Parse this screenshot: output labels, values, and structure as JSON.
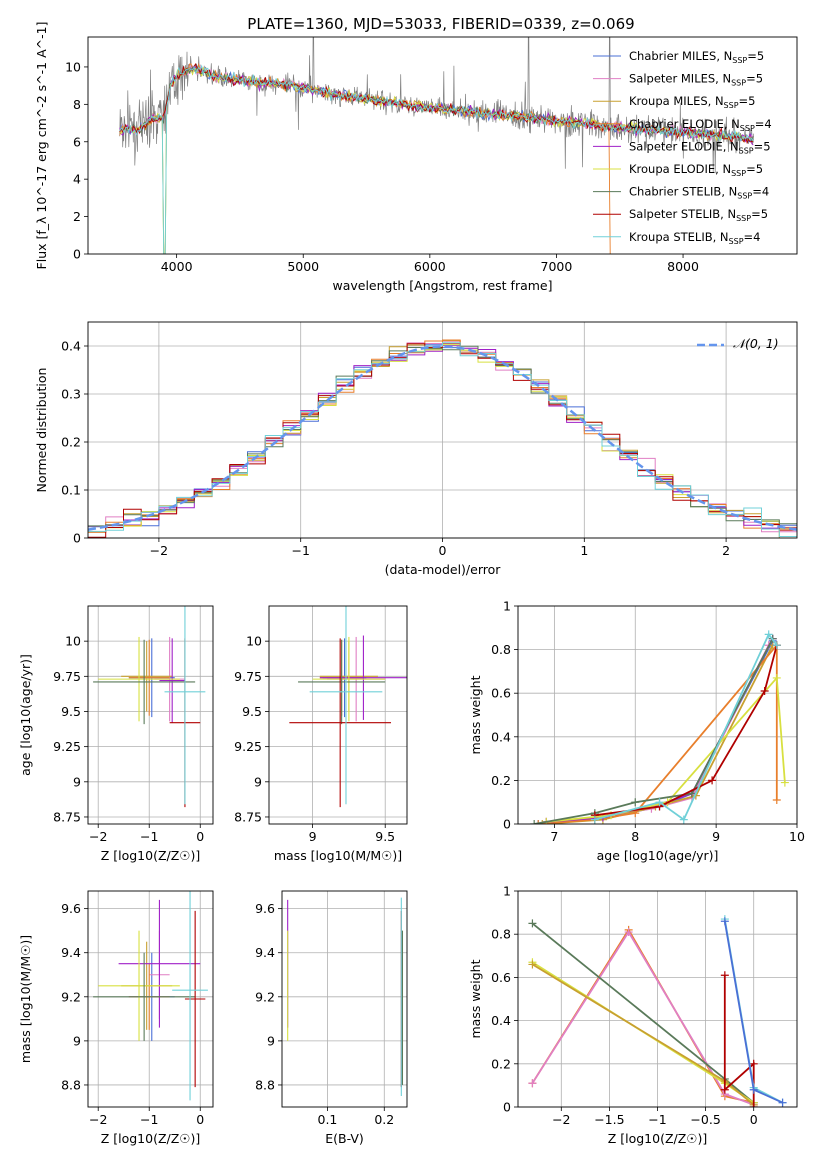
{
  "figure": {
    "title": "PLATE=1360, MJD=53033, FIBERID=0339, z=0.069"
  },
  "colors": {
    "Chabrier MILES": "#4a6fd6",
    "Salpeter MILES": "#e07fc4",
    "Kroupa MILES": "#c8a030",
    "Chabrier ELODIE": "#e87f2c",
    "Salpeter ELODIE": "#a020c8",
    "Kroupa ELODIE": "#d8e040",
    "Chabrier STELIB": "#5a7a5a",
    "Salpeter STELIB": "#b00000",
    "Kroupa STELIB": "#70d0d8",
    "data": "#808080",
    "normal": "#6495ed",
    "grid": "#b0b0b0"
  },
  "chart_data": [
    {
      "id": "spectrum",
      "type": "line",
      "xlabel": "wavelength [Angstrom, rest frame]",
      "ylabel": "Flux [f_λ 10^-17 erg cm^-2 s^-1 A^-1]",
      "xlim": [
        3300,
        8900
      ],
      "ylim": [
        0,
        11.6
      ],
      "xticks": [
        4000,
        5000,
        6000,
        7000,
        8000
      ],
      "yticks": [
        0,
        2,
        4,
        6,
        8,
        10
      ],
      "grid": false,
      "legend_position": "top-right",
      "legend": [
        {
          "label": "Chabrier MILES",
          "sub": "N_SSP=5"
        },
        {
          "label": "Salpeter MILES",
          "sub": "N_SSP=5"
        },
        {
          "label": "Kroupa MILES",
          "sub": "N_SSP=5"
        },
        {
          "label": "Chabrier ELODIE",
          "sub": "N_SSP=4"
        },
        {
          "label": "Salpeter ELODIE",
          "sub": "N_SSP=5"
        },
        {
          "label": "Kroupa ELODIE",
          "sub": "N_SSP=5"
        },
        {
          "label": "Chabrier STELIB",
          "sub": "N_SSP=4"
        },
        {
          "label": "Salpeter STELIB",
          "sub": "N_SSP=5"
        },
        {
          "label": "Kroupa STELIB",
          "sub": "N_SSP=4"
        }
      ],
      "continuum": {
        "x": [
          3550,
          3600,
          3700,
          3800,
          3900,
          3950,
          4000,
          4100,
          4200,
          4300,
          4400,
          4500,
          4600,
          4800,
          5000,
          5200,
          5400,
          5600,
          5800,
          6000,
          6200,
          6400,
          6600,
          6800,
          7000,
          7200,
          7400,
          7600,
          7800,
          8000,
          8200,
          8400,
          8560
        ],
        "y": [
          6.6,
          6.7,
          6.6,
          7.2,
          7.3,
          9.0,
          9.5,
          9.9,
          9.8,
          9.5,
          9.4,
          9.3,
          9.2,
          9.1,
          8.9,
          8.6,
          8.4,
          8.2,
          8.0,
          7.8,
          7.7,
          7.5,
          7.4,
          7.3,
          7.1,
          7.0,
          6.8,
          6.7,
          6.6,
          6.5,
          6.4,
          6.3,
          6.1
        ]
      },
      "noisy_spikes_x": [
        5080,
        6780,
        7420
      ]
    },
    {
      "id": "residuals",
      "type": "line",
      "xlabel": "(data-model)/error",
      "ylabel": "Normed distribution",
      "xlim": [
        -2.5,
        2.5
      ],
      "ylim": [
        0,
        0.45
      ],
      "xticks": [
        -2,
        -1,
        0,
        1,
        2
      ],
      "yticks": [
        0.0,
        0.1,
        0.2,
        0.3,
        0.4
      ],
      "grid": true,
      "legend_position": "top-right",
      "legend": [
        {
          "label": "N(0,1)"
        }
      ]
    },
    {
      "id": "age-vs-Z",
      "type": "scatter",
      "xlabel": "Z [log10(Z/Z☉)]",
      "ylabel": "age [log10(age/yr)]",
      "xlim": [
        -2.2,
        0.25
      ],
      "ylim": [
        8.7,
        10.25
      ],
      "xticks": [
        -2,
        -1,
        0
      ],
      "yticks": [
        8.75,
        9.0,
        9.25,
        9.5,
        9.75,
        10.0
      ],
      "grid": true,
      "points": [
        {
          "series": "Chabrier MILES",
          "x": -0.95,
          "y": 9.74,
          "xerr": 0.45,
          "yerr": 0.28
        },
        {
          "series": "Salpeter MILES",
          "x": -0.6,
          "y": 9.73,
          "xerr": 0.3,
          "yerr": 0.3
        },
        {
          "series": "Kroupa MILES",
          "x": -1.05,
          "y": 9.75,
          "xerr": 0.5,
          "yerr": 0.25
        },
        {
          "series": "Chabrier ELODIE",
          "x": -1.0,
          "y": 9.74,
          "xerr": 0.4,
          "yerr": 0.27
        },
        {
          "series": "Salpeter ELODIE",
          "x": -0.55,
          "y": 9.72,
          "xerr": 0.25,
          "yerr": 0.3
        },
        {
          "series": "Kroupa ELODIE",
          "x": -1.2,
          "y": 9.73,
          "xerr": 0.8,
          "yerr": 0.3
        },
        {
          "series": "Chabrier STELIB",
          "x": -1.1,
          "y": 9.71,
          "xerr": 1.0,
          "yerr": 0.3
        },
        {
          "series": "Salpeter STELIB",
          "x": -0.3,
          "y": 9.42,
          "xerr": 0.3,
          "yerr": 0.6
        },
        {
          "series": "Kroupa STELIB",
          "x": -0.3,
          "y": 9.64,
          "xerr": 0.4,
          "yerr": 0.8
        }
      ]
    },
    {
      "id": "age-vs-mass",
      "type": "scatter",
      "xlabel": "mass [log10(M/M☉)]",
      "ylabel": "",
      "xlim": [
        8.7,
        9.65
      ],
      "ylim": [
        8.7,
        10.25
      ],
      "xticks": [
        9.0,
        9.5
      ],
      "yticks": [
        8.75,
        9.0,
        9.25,
        9.5,
        9.75,
        10.0
      ],
      "grid": true,
      "points": [
        {
          "series": "Chabrier MILES",
          "x": 9.22,
          "y": 9.74,
          "xerr": 0.15,
          "yerr": 0.28
        },
        {
          "series": "Salpeter MILES",
          "x": 9.3,
          "y": 9.73,
          "xerr": 0.2,
          "yerr": 0.3
        },
        {
          "series": "Kroupa MILES",
          "x": 9.25,
          "y": 9.75,
          "xerr": 0.2,
          "yerr": 0.25
        },
        {
          "series": "Chabrier ELODIE",
          "x": 9.2,
          "y": 9.74,
          "xerr": 0.15,
          "yerr": 0.27
        },
        {
          "series": "Salpeter ELODIE",
          "x": 9.35,
          "y": 9.74,
          "xerr": 0.3,
          "yerr": 0.3
        },
        {
          "series": "Kroupa ELODIE",
          "x": 9.25,
          "y": 9.73,
          "xerr": 0.25,
          "yerr": 0.3
        },
        {
          "series": "Chabrier STELIB",
          "x": 9.2,
          "y": 9.71,
          "xerr": 0.3,
          "yerr": 0.3
        },
        {
          "series": "Salpeter STELIB",
          "x": 9.19,
          "y": 9.42,
          "xerr": 0.35,
          "yerr": 0.6
        },
        {
          "series": "Kroupa STELIB",
          "x": 9.23,
          "y": 9.64,
          "xerr": 0.25,
          "yerr": 0.8
        }
      ]
    },
    {
      "id": "massweight-vs-age",
      "type": "line",
      "xlabel": "age [log10(age/yr)]",
      "ylabel": "mass weight",
      "xlim": [
        6.55,
        10.0
      ],
      "ylim": [
        0,
        1.0
      ],
      "xticks": [
        7,
        8,
        9,
        10
      ],
      "yticks": [
        0.0,
        0.2,
        0.4,
        0.6,
        0.8,
        1.0
      ],
      "grid": true,
      "series": [
        {
          "name": "Chabrier MILES",
          "x": [
            6.8,
            7.5,
            8.3,
            8.7,
            9.7
          ],
          "y": [
            0.0,
            0.02,
            0.08,
            0.14,
            0.84
          ]
        },
        {
          "name": "Salpeter MILES",
          "x": [
            6.9,
            7.5,
            8.2,
            8.7,
            9.65
          ],
          "y": [
            0.01,
            0.03,
            0.07,
            0.12,
            0.82
          ]
        },
        {
          "name": "Kroupa MILES",
          "x": [
            6.85,
            7.6,
            8.25,
            8.75,
            9.7
          ],
          "y": [
            0.0,
            0.02,
            0.08,
            0.13,
            0.82
          ]
        },
        {
          "name": "Chabrier ELODIE",
          "x": [
            6.8,
            7.5,
            8.0,
            9.75,
            9.75
          ],
          "y": [
            0.0,
            0.02,
            0.05,
            0.82,
            0.11
          ]
        },
        {
          "name": "Salpeter ELODIE",
          "x": [
            6.9,
            7.6,
            8.3,
            8.7,
            9.7
          ],
          "y": [
            0.01,
            0.03,
            0.09,
            0.14,
            0.85
          ]
        },
        {
          "name": "Kroupa ELODIE",
          "x": [
            6.9,
            7.7,
            8.4,
            9.75,
            9.85
          ],
          "y": [
            0.01,
            0.04,
            0.1,
            0.67,
            0.19
          ]
        },
        {
          "name": "Chabrier STELIB",
          "x": [
            6.75,
            7.5,
            8.0,
            8.7,
            9.7
          ],
          "y": [
            0.0,
            0.05,
            0.1,
            0.14,
            0.85
          ]
        },
        {
          "name": "Salpeter STELIB",
          "x": [
            7.5,
            8.3,
            8.95,
            9.6,
            9.75
          ],
          "y": [
            0.04,
            0.08,
            0.2,
            0.61,
            0.82
          ]
        },
        {
          "name": "Kroupa STELIB",
          "x": [
            7.5,
            8.3,
            8.6,
            9.65,
            9.75
          ],
          "y": [
            0.02,
            0.1,
            0.02,
            0.87,
            0.82
          ]
        }
      ]
    },
    {
      "id": "mass-vs-Z",
      "type": "scatter",
      "xlabel": "Z [log10(Z/Z☉)]",
      "ylabel": "mass [log10(M/M☉)]",
      "xlim": [
        -2.2,
        0.25
      ],
      "ylim": [
        8.7,
        9.68
      ],
      "xticks": [
        -2,
        -1,
        0
      ],
      "yticks": [
        8.8,
        9.0,
        9.2,
        9.4,
        9.6
      ],
      "grid": true,
      "points": [
        {
          "series": "Chabrier MILES",
          "x": -0.95,
          "y": 9.2,
          "xerr": 0.45,
          "yerr": 0.2
        },
        {
          "series": "Salpeter MILES",
          "x": -0.8,
          "y": 9.3,
          "xerr": 0.2,
          "yerr": 0.2
        },
        {
          "series": "Kroupa MILES",
          "x": -1.05,
          "y": 9.25,
          "xerr": 0.5,
          "yerr": 0.2
        },
        {
          "series": "Chabrier ELODIE",
          "x": -1.0,
          "y": 9.2,
          "xerr": 0.4,
          "yerr": 0.15
        },
        {
          "series": "Salpeter ELODIE",
          "x": -0.8,
          "y": 9.35,
          "xerr": 0.8,
          "yerr": 0.29
        },
        {
          "series": "Kroupa ELODIE",
          "x": -1.2,
          "y": 9.25,
          "xerr": 0.8,
          "yerr": 0.25
        },
        {
          "series": "Chabrier STELIB",
          "x": -1.1,
          "y": 9.2,
          "xerr": 1.0,
          "yerr": 0.2
        },
        {
          "series": "Salpeter STELIB",
          "x": -0.1,
          "y": 9.19,
          "xerr": 0.2,
          "yerr": 0.4
        },
        {
          "series": "Kroupa STELIB",
          "x": -0.2,
          "y": 9.23,
          "xerr": 0.35,
          "yerr": 0.5
        }
      ]
    },
    {
      "id": "mass-vs-EBV",
      "type": "scatter",
      "xlabel": "E(B-V)",
      "ylabel": "",
      "xlim": [
        0.02,
        0.24
      ],
      "ylim": [
        8.7,
        9.68
      ],
      "xticks": [
        0.1,
        0.2
      ],
      "yticks": [
        8.8,
        9.0,
        9.2,
        9.4,
        9.6
      ],
      "grid": true,
      "points": [
        {
          "series": "Salpeter ELODIE",
          "x": 0.03,
          "y": 9.35,
          "xerr": 0.0,
          "yerr": 0.29
        },
        {
          "series": "Kroupa ELODIE",
          "x": 0.03,
          "y": 9.25,
          "xerr": 0.0,
          "yerr": 0.25
        },
        {
          "series": "Salpeter STELIB",
          "x": 0.23,
          "y": 9.19,
          "xerr": 0.0,
          "yerr": 0.4
        },
        {
          "series": "Kroupa STELIB",
          "x": 0.23,
          "y": 9.2,
          "xerr": 0.0,
          "yerr": 0.45
        },
        {
          "series": "Chabrier STELIB",
          "x": 0.232,
          "y": 9.15,
          "xerr": 0.0,
          "yerr": 0.35
        }
      ]
    },
    {
      "id": "massweight-vs-Z",
      "type": "line",
      "xlabel": "Z [log10(Z/Z☉)]",
      "ylabel": "mass weight",
      "xlim": [
        -2.45,
        0.45
      ],
      "ylim": [
        0,
        1.0
      ],
      "xticks": [
        -2.0,
        -1.5,
        -1.0,
        -0.5,
        0.0
      ],
      "yticks": [
        0.0,
        0.2,
        0.4,
        0.6,
        0.8,
        1.0
      ],
      "grid": true,
      "series": [
        {
          "name": "Chabrier ELODIE",
          "x": [
            -2.3,
            -1.3,
            -0.3,
            0.0
          ],
          "y": [
            0.11,
            0.82,
            0.05,
            0.02
          ]
        },
        {
          "name": "Salpeter MILES",
          "x": [
            -2.3,
            -1.3,
            -0.3,
            0.0
          ],
          "y": [
            0.11,
            0.81,
            0.06,
            0.01
          ]
        },
        {
          "name": "Chabrier STELIB",
          "x": [
            -2.3,
            -0.3,
            0.0
          ],
          "y": [
            0.85,
            0.13,
            0.02
          ]
        },
        {
          "name": "Kroupa ELODIE",
          "x": [
            -2.3,
            -0.3,
            0.0
          ],
          "y": [
            0.67,
            0.11,
            0.02
          ]
        },
        {
          "name": "Kroupa MILES",
          "x": [
            -2.3,
            -0.3,
            0.0
          ],
          "y": [
            0.66,
            0.12,
            0.01
          ]
        },
        {
          "name": "Salpeter STELIB",
          "x": [
            -0.3,
            -0.3,
            0.0,
            0.0
          ],
          "y": [
            0.61,
            0.08,
            0.2,
            0.0
          ]
        },
        {
          "name": "Kroupa STELIB",
          "x": [
            -0.3,
            0.0,
            0.3
          ],
          "y": [
            0.87,
            0.09,
            0.02
          ]
        },
        {
          "name": "Chabrier MILES",
          "x": [
            -0.3,
            0.0,
            0.3
          ],
          "y": [
            0.86,
            0.08,
            0.02
          ]
        }
      ]
    }
  ]
}
